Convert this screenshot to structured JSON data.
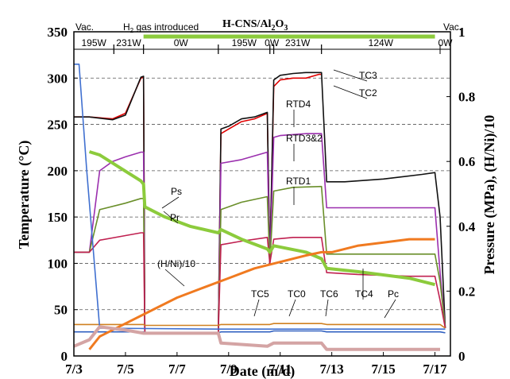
{
  "chart_data": {
    "type": "line",
    "title": "H-CNS/Al2O3",
    "title_main": "H-CNS/Al",
    "title_sub": "2",
    "title_mid": "O",
    "title_sub2": "3",
    "xlabel": "Date  (m/d)",
    "ylabel_left": "Temperature (°C)",
    "ylabel_right": "Pressure  (MPa),  (H/Ni)/10",
    "xlim": [
      3.0,
      17.6
    ],
    "ylim_left": [
      0,
      350
    ],
    "ylim_right": [
      0,
      1.0
    ],
    "x_ticks": [
      {
        "x": 3,
        "label": "7/3"
      },
      {
        "x": 5,
        "label": "7/5"
      },
      {
        "x": 7,
        "label": "7/7"
      },
      {
        "x": 9,
        "label": "7/9"
      },
      {
        "x": 11,
        "label": "7/11"
      },
      {
        "x": 13,
        "label": "7/13"
      },
      {
        "x": 15,
        "label": "7/15"
      },
      {
        "x": 17,
        "label": "7/17"
      }
    ],
    "y_ticks_left": [
      "0",
      "50",
      "100",
      "150",
      "200",
      "250",
      "300",
      "350"
    ],
    "y_ticks_right": [
      {
        "v": 0,
        "label": "0"
      },
      {
        "v": 0.2,
        "label": "0.2"
      },
      {
        "v": 0.4,
        "label": "0.4"
      },
      {
        "v": 0.6,
        "label": "0.6"
      },
      {
        "v": 0.8,
        "label": "0.8"
      },
      {
        "v": 1.0,
        "label": "1"
      }
    ],
    "grid_dashed_at_left": [
      50,
      100,
      150,
      200,
      250,
      300
    ],
    "power_phases": [
      {
        "x0": 3.0,
        "x1": 3.45,
        "label": "Vac."
      },
      {
        "x0": 3.0,
        "x1": 4.55,
        "label": "195W"
      },
      {
        "x0": 4.55,
        "x1": 5.7,
        "label": "231W"
      },
      {
        "x0": 5.7,
        "x1": 8.6,
        "label": "0W"
      },
      {
        "x0": 8.6,
        "x1": 10.6,
        "label": "195W"
      },
      {
        "x0": 10.6,
        "x1": 10.75,
        "label": "0W"
      },
      {
        "x0": 10.75,
        "x1": 12.6,
        "label": "231W"
      },
      {
        "x0": 12.6,
        "x1": 17.2,
        "label": "124W"
      },
      {
        "x0": 17.2,
        "x1": 17.6,
        "label": "0W"
      },
      {
        "x0": 17.2,
        "x1": 17.6,
        "label": "Vac."
      }
    ],
    "h2_label": "H",
    "h2_sub": "2",
    "h2_rest": " gas introduced",
    "annotations": [
      "TC3",
      "TC2",
      "RTD4",
      "RTD3&2",
      "RTD1",
      "Ps",
      "Pr",
      "(H/Ni)/10",
      "TC5",
      "TC0",
      "TC6",
      "TC4",
      "Pc"
    ],
    "series": [
      {
        "name": "TC3",
        "axis": "left",
        "color": "#e00000",
        "x": [
          3.0,
          3.6,
          4.5,
          5.0,
          5.6,
          5.7,
          5.75,
          8.6,
          8.7,
          9.0,
          9.5,
          10.0,
          10.5,
          10.6,
          10.75,
          11.0,
          11.5,
          12.0,
          12.5,
          12.6
        ],
        "y": [
          258,
          258,
          256,
          262,
          300,
          301,
          25,
          25,
          240,
          245,
          253,
          256,
          262,
          100,
          291,
          298,
          300,
          300,
          304,
          304
        ]
      },
      {
        "name": "TC2",
        "axis": "left",
        "color": "#111111",
        "x": [
          3.0,
          3.6,
          4.5,
          5.0,
          5.6,
          5.7,
          5.75,
          8.6,
          8.7,
          9.0,
          9.5,
          10.0,
          10.5,
          10.6,
          10.75,
          11.0,
          11.5,
          12.0,
          12.5,
          12.6,
          12.8,
          13.5,
          15.0,
          16.5,
          17.0,
          17.2,
          17.4
        ],
        "y": [
          258,
          258,
          255,
          260,
          301,
          302,
          25,
          25,
          245,
          248,
          256,
          258,
          263,
          101,
          298,
          303,
          305,
          306,
          306,
          306,
          188,
          188,
          191,
          196,
          198,
          150,
          30
        ]
      },
      {
        "name": "RTD4",
        "axis": "left",
        "color": "#9b2fae",
        "x": [
          3.0,
          3.6,
          4.0,
          4.5,
          5.0,
          5.6,
          5.7,
          5.75,
          8.6,
          8.7,
          9.5,
          10.5,
          10.6,
          10.75,
          11.0,
          12.0,
          12.6,
          12.8,
          14.0,
          16.0,
          17.0,
          17.2,
          17.4
        ],
        "y": [
          112,
          112,
          200,
          210,
          215,
          220,
          220,
          25,
          25,
          208,
          212,
          220,
          100,
          236,
          238,
          240,
          240,
          160,
          160,
          160,
          160,
          90,
          30
        ]
      },
      {
        "name": "RTD3&2",
        "axis": "left",
        "color": "#6a8f2a",
        "x": [
          3.0,
          3.6,
          4.0,
          5.0,
          5.6,
          5.7,
          5.75,
          8.6,
          8.7,
          9.5,
          10.5,
          10.6,
          10.75,
          11.5,
          12.6,
          12.8,
          14.0,
          16.0,
          17.0,
          17.2,
          17.4
        ],
        "y": [
          112,
          112,
          158,
          165,
          170,
          170,
          25,
          25,
          158,
          166,
          172,
          100,
          178,
          182,
          183,
          110,
          110,
          110,
          110,
          80,
          30
        ]
      },
      {
        "name": "RTD1",
        "axis": "left",
        "color": "#c02050",
        "x": [
          3.0,
          3.6,
          4.0,
          5.0,
          5.6,
          5.7,
          5.75,
          8.6,
          8.7,
          9.5,
          10.5,
          10.6,
          10.75,
          11.5,
          12.6,
          12.8,
          14.0,
          16.0,
          17.0,
          17.2,
          17.4
        ],
        "y": [
          112,
          112,
          125,
          130,
          133,
          133,
          25,
          25,
          120,
          124,
          128,
          100,
          126,
          128,
          128,
          90,
          88,
          86,
          86,
          60,
          30
        ]
      },
      {
        "name": "TC5",
        "axis": "left",
        "color": "#d08020",
        "x": [
          3.0,
          5.7,
          5.75,
          8.6,
          8.7,
          10.6,
          10.75,
          12.6,
          12.8,
          17.2,
          17.4
        ],
        "y": [
          34,
          34,
          33,
          33,
          34,
          34,
          35,
          35,
          34,
          34,
          30
        ]
      },
      {
        "name": "TC0",
        "axis": "left",
        "color": "#3060c0",
        "x": [
          3.0,
          5.7,
          5.75,
          8.6,
          8.7,
          10.6,
          10.75,
          12.6,
          12.8,
          17.2,
          17.4
        ],
        "y": [
          26,
          26,
          25,
          25,
          26,
          26,
          27,
          27,
          26,
          26,
          25
        ]
      },
      {
        "name": "TC6",
        "axis": "left",
        "color": "#4070d0",
        "x": [
          3.0,
          3.2,
          3.5,
          4.0,
          8.6,
          17.4
        ],
        "y": [
          315,
          315,
          200,
          30,
          29,
          29
        ]
      },
      {
        "name": "Ps",
        "axis": "right",
        "color": "#8ccb3c",
        "x": [
          3.6,
          4.0,
          5.0,
          5.6,
          5.7,
          5.75,
          6.5,
          7.5,
          8.6,
          8.7,
          9.5,
          10.5,
          10.6,
          10.75,
          12.0,
          12.6,
          12.8,
          14.0,
          16.0,
          17.0
        ],
        "y": [
          0.63,
          0.62,
          0.57,
          0.54,
          0.53,
          0.46,
          0.43,
          0.4,
          0.38,
          0.39,
          0.36,
          0.33,
          0.32,
          0.34,
          0.32,
          0.3,
          0.27,
          0.26,
          0.24,
          0.22
        ]
      },
      {
        "name": "(H/Ni)/10",
        "axis": "right",
        "color": "#f07a20",
        "x": [
          3.6,
          4.0,
          5.0,
          6.0,
          7.0,
          8.0,
          9.0,
          10.0,
          11.0,
          12.0,
          12.6,
          13.0,
          14.0,
          15.0,
          16.0,
          17.0
        ],
        "y": [
          0.02,
          0.06,
          0.1,
          0.14,
          0.18,
          0.21,
          0.24,
          0.27,
          0.29,
          0.31,
          0.32,
          0.32,
          0.34,
          0.35,
          0.36,
          0.36
        ]
      },
      {
        "name": "Pc",
        "axis": "right",
        "color": "#d4a4a4",
        "x": [
          3.0,
          3.6,
          4.0,
          5.0,
          5.7,
          6.5,
          8.6,
          8.7,
          10.5,
          10.75,
          12.6,
          12.8,
          17.2
        ],
        "y": [
          0.03,
          0.05,
          0.09,
          0.08,
          0.07,
          0.07,
          0.07,
          0.04,
          0.03,
          0.04,
          0.04,
          0.02,
          0.02
        ]
      }
    ]
  }
}
